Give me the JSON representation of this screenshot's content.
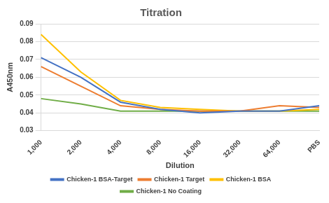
{
  "chart_data": {
    "type": "line",
    "title": "Titration",
    "x_label": "Dilution",
    "y_label": "A450nm",
    "categories": [
      "1,000",
      "2,000",
      "4,000",
      "8,000",
      "16,000",
      "32,000",
      "64,000",
      "PBS"
    ],
    "series": [
      {
        "name": "Chicken-1 BSA-Target",
        "color": "#4472c4",
        "values": [
          0.071,
          0.06,
          0.046,
          0.042,
          0.04,
          0.041,
          0.041,
          0.044
        ]
      },
      {
        "name": "Chicken-1 Target",
        "color": "#ed7d31",
        "values": [
          0.066,
          0.055,
          0.044,
          0.042,
          0.041,
          0.041,
          0.044,
          0.043
        ]
      },
      {
        "name": "Chicken-1 BSA",
        "color": "#ffc000",
        "values": [
          0.084,
          0.063,
          0.047,
          0.043,
          0.042,
          0.041,
          0.041,
          0.042
        ]
      },
      {
        "name": "Chicken-1 No Coating",
        "color": "#70ad47",
        "values": [
          0.048,
          0.045,
          0.041,
          0.041,
          0.041,
          0.041,
          0.041,
          0.041
        ]
      }
    ],
    "ylim": [
      0.03,
      0.09
    ],
    "yticks": [
      0.03,
      0.04,
      0.05,
      0.06,
      0.07,
      0.08,
      0.09
    ],
    "grid": true,
    "legend": "bottom"
  }
}
